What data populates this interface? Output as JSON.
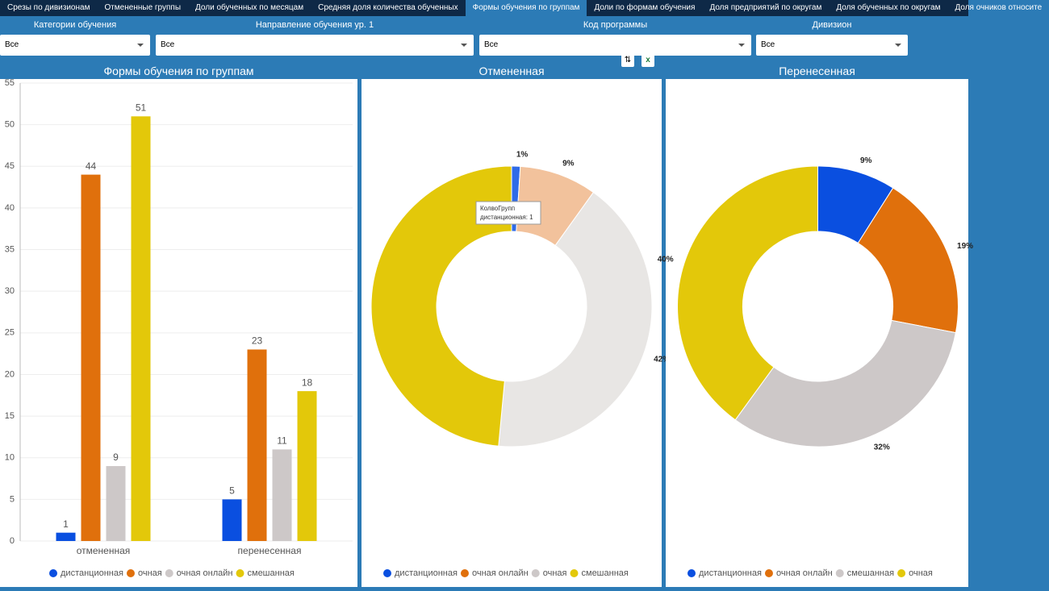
{
  "tabs": [
    "Срезы по дивизионам",
    "Отмененные группы",
    "Доли обученных по месяцам",
    "Средняя доля количества обученных",
    "Формы обучения по группам",
    "Доли по формам обучения",
    "Доля предприятий по округам",
    "Доля обученных по округам",
    "Доля очников относите"
  ],
  "active_tab": 4,
  "filters": [
    {
      "label": "Категории обучения",
      "value": "Все"
    },
    {
      "label": "Направление обучения ур. 1",
      "value": "Все"
    },
    {
      "label": "Код программы",
      "value": "Все"
    },
    {
      "label": "Дивизион",
      "value": "Все"
    }
  ],
  "tooltip": {
    "title": "КолвоГрупп",
    "text": "дистанционная: 1"
  },
  "chart_data": [
    {
      "type": "bar",
      "title": "Формы обучения по группам",
      "categories": [
        "отмененная",
        "перенесенная"
      ],
      "series": [
        {
          "name": "дистанционная",
          "color": "#0a4fe0",
          "values": [
            1,
            5
          ]
        },
        {
          "name": "очная",
          "color": "#e0700c",
          "values": [
            44,
            23
          ]
        },
        {
          "name": "очная онлайн",
          "color": "#cdc8c8",
          "values": [
            9,
            11
          ]
        },
        {
          "name": "смешанная",
          "color": "#e3c80a",
          "values": [
            51,
            18
          ]
        }
      ],
      "ylim": [
        0,
        55
      ],
      "yticks": [
        0,
        5,
        10,
        15,
        20,
        25,
        30,
        35,
        40,
        45,
        50,
        55
      ],
      "grid": true
    },
    {
      "type": "donut",
      "title": "Отмененная",
      "categories": [
        "дистанционная",
        "очная онлайн",
        "очная",
        "смешанная"
      ],
      "values": [
        1,
        9,
        42,
        49
      ],
      "value_labels": [
        "1%",
        "9%",
        "42%",
        null
      ],
      "colors": [
        "#2f6be8",
        "#f2c29c",
        "#e8e6e4",
        "#e3c80a"
      ],
      "legend_colors": [
        "#0a4fe0",
        "#e0700c",
        "#cdc8c8",
        "#e3c80a"
      ]
    },
    {
      "type": "donut",
      "title": "Перенесенная",
      "categories": [
        "дистанционная",
        "очная онлайн",
        "смешанная",
        "очная"
      ],
      "values": [
        9,
        19,
        32,
        40
      ],
      "value_labels": [
        "9%",
        "19%",
        "32%",
        "40%"
      ],
      "colors": [
        "#0a4fe0",
        "#e0700c",
        "#cdc8c8",
        "#e3c80a"
      ],
      "legend_colors": [
        "#0a4fe0",
        "#e0700c",
        "#cdc8c8",
        "#e3c80a"
      ]
    }
  ]
}
